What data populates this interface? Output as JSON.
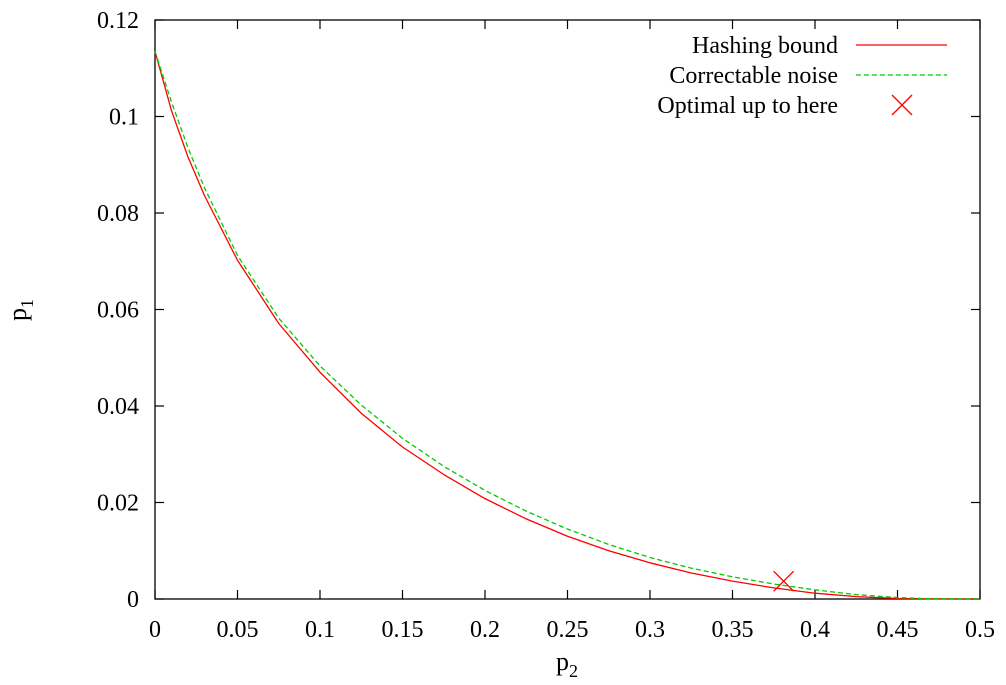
{
  "chart_data": {
    "type": "line",
    "title": "",
    "xlabel": {
      "main": "p",
      "sub": "2"
    },
    "ylabel": {
      "main": "p",
      "sub": "1"
    },
    "xlim": [
      0,
      0.5
    ],
    "ylim": [
      0,
      0.12
    ],
    "xticks": [
      "0",
      "0.05",
      "0.1",
      "0.15",
      "0.2",
      "0.25",
      "0.3",
      "0.35",
      "0.4",
      "0.45",
      "0.5"
    ],
    "yticks": [
      "0",
      "0.02",
      "0.04",
      "0.06",
      "0.08",
      "0.1",
      "0.12"
    ],
    "legend_position": "top-right",
    "grid": false,
    "series": [
      {
        "name": "Hashing bound",
        "style": "solid",
        "color": "#ff0000",
        "x": [
          0,
          0.01,
          0.02,
          0.03,
          0.05,
          0.075,
          0.1,
          0.125,
          0.15,
          0.175,
          0.2,
          0.225,
          0.25,
          0.275,
          0.3,
          0.325,
          0.35,
          0.375,
          0.4,
          0.425,
          0.45,
          0.47,
          0.49,
          0.5
        ],
        "y": [
          0.1135,
          0.1012,
          0.0916,
          0.0836,
          0.0702,
          0.0571,
          0.047,
          0.0385,
          0.0315,
          0.0258,
          0.0208,
          0.0166,
          0.013,
          0.01,
          0.0075,
          0.0054,
          0.0037,
          0.0023,
          0.0012,
          0.0005,
          0.0001,
          2e-05,
          0,
          0
        ]
      },
      {
        "name": "Correctable noise",
        "style": "dashed",
        "color": "#00cc00",
        "x": [
          0,
          0.01,
          0.02,
          0.03,
          0.05,
          0.075,
          0.1,
          0.125,
          0.15,
          0.175,
          0.2,
          0.225,
          0.25,
          0.275,
          0.3,
          0.325,
          0.35,
          0.375,
          0.4,
          0.425,
          0.45,
          0.47,
          0.49,
          0.5
        ],
        "y": [
          0.1135,
          0.103,
          0.0935,
          0.0852,
          0.0712,
          0.0582,
          0.0483,
          0.0402,
          0.0333,
          0.0275,
          0.0225,
          0.0182,
          0.0145,
          0.0113,
          0.0086,
          0.0064,
          0.0046,
          0.0031,
          0.0019,
          0.0009,
          0.0003,
          5e-05,
          0,
          0
        ]
      }
    ],
    "markers": [
      {
        "name": "Optimal up to here",
        "symbol": "x",
        "color": "#ff0000",
        "x": 0.381,
        "y": 0.0037
      }
    ]
  }
}
